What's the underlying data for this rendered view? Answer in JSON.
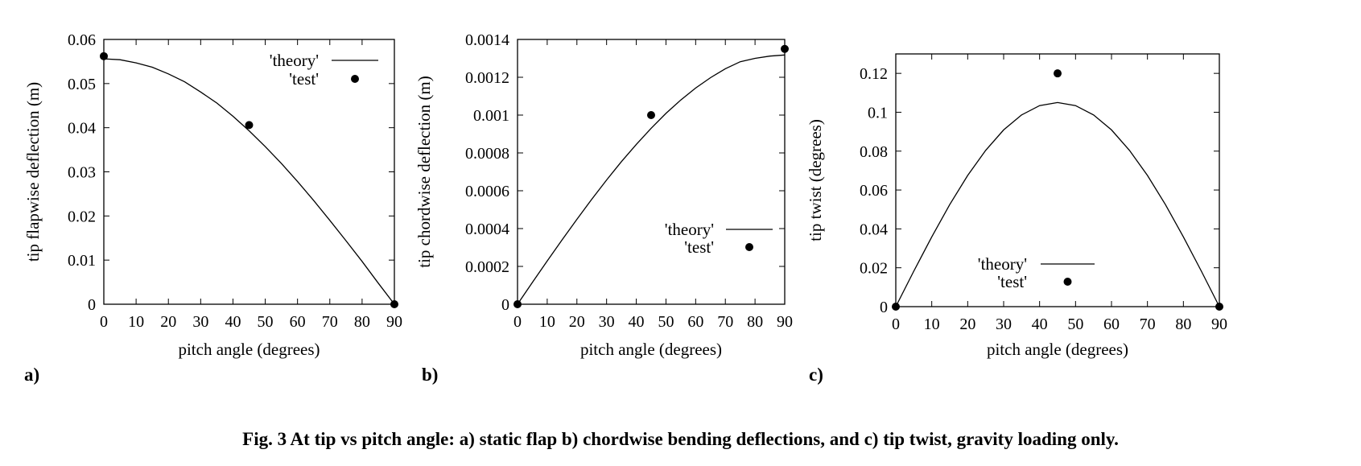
{
  "caption": "Fig. 3    At tip vs pitch angle: a) static flap b) chordwise bending deflections, and c) tip twist, gravity loading only.",
  "chart_data": [
    {
      "type": "line",
      "panel_label": "a)",
      "xlabel": "pitch angle (degrees)",
      "ylabel": "tip flapwise deflection (m)",
      "xlim": [
        0,
        90
      ],
      "ylim": [
        0,
        0.06
      ],
      "xticks": [
        0,
        10,
        20,
        30,
        40,
        50,
        60,
        70,
        80,
        90
      ],
      "xtick_labels": [
        "0",
        "10",
        "20",
        "30",
        "40",
        "50",
        "60",
        "70",
        "80",
        "90"
      ],
      "yticks": [
        0,
        0.01,
        0.02,
        0.03,
        0.04,
        0.05,
        0.06
      ],
      "ytick_labels": [
        "0",
        "0.01",
        "0.02",
        "0.03",
        "0.04",
        "0.05",
        "0.06"
      ],
      "legend_position": "top-right",
      "series": [
        {
          "name": "'theory'",
          "kind": "line",
          "x": [
            0,
            5,
            10,
            15,
            20,
            25,
            30,
            35,
            40,
            45,
            50,
            55,
            60,
            65,
            70,
            75,
            80,
            85,
            90
          ],
          "y": [
            0.0556,
            0.0554,
            0.0547,
            0.0537,
            0.0522,
            0.0504,
            0.0481,
            0.0456,
            0.0426,
            0.0393,
            0.0357,
            0.0319,
            0.0278,
            0.0235,
            0.019,
            0.0144,
            0.0097,
            0.0048,
            0.0
          ]
        },
        {
          "name": "'test'",
          "kind": "scatter",
          "x": [
            0,
            45,
            90
          ],
          "y": [
            0.0562,
            0.0406,
            0.0
          ]
        }
      ]
    },
    {
      "type": "line",
      "panel_label": "b)",
      "xlabel": "pitch angle (degrees)",
      "ylabel": "tip chordwise deflection (m)",
      "xlim": [
        0,
        90
      ],
      "ylim": [
        0,
        0.0014
      ],
      "xticks": [
        0,
        10,
        20,
        30,
        40,
        50,
        60,
        70,
        80,
        90
      ],
      "xtick_labels": [
        "0",
        "10",
        "20",
        "30",
        "40",
        "50",
        "60",
        "70",
        "80",
        "90"
      ],
      "yticks": [
        0,
        0.0002,
        0.0004,
        0.0006,
        0.0008,
        0.001,
        0.0012,
        0.0014
      ],
      "ytick_labels": [
        "0",
        "0.0002",
        "0.0004",
        "0.0006",
        "0.0008",
        "0.001",
        "0.0012",
        "0.0014"
      ],
      "legend_position": "bottom-right",
      "series": [
        {
          "name": "'theory'",
          "kind": "line",
          "x": [
            0,
            5,
            10,
            15,
            20,
            25,
            30,
            35,
            40,
            45,
            50,
            55,
            60,
            65,
            70,
            75,
            80,
            85,
            90
          ],
          "y": [
            0.0,
            0.000115,
            0.000229,
            0.00034,
            0.000449,
            0.000555,
            0.000657,
            0.000754,
            0.000845,
            0.00093,
            0.001009,
            0.00108,
            0.001143,
            0.001198,
            0.001245,
            0.001282,
            0.0013,
            0.001312,
            0.001318
          ]
        },
        {
          "name": "'test'",
          "kind": "scatter",
          "x": [
            0,
            45,
            90
          ],
          "y": [
            0.0,
            0.001,
            0.00135
          ]
        }
      ]
    },
    {
      "type": "line",
      "panel_label": "c)",
      "xlabel": "pitch angle (degrees)",
      "ylabel": "tip twist (degrees)",
      "xlim": [
        0,
        90
      ],
      "ylim": [
        0,
        0.13
      ],
      "xticks": [
        0,
        10,
        20,
        30,
        40,
        50,
        60,
        70,
        80,
        90
      ],
      "xtick_labels": [
        "0",
        "10",
        "20",
        "30",
        "40",
        "50",
        "60",
        "70",
        "80",
        "90"
      ],
      "yticks": [
        0,
        0.02,
        0.04,
        0.06,
        0.08,
        0.1,
        0.12
      ],
      "ytick_labels": [
        "0",
        "0.02",
        "0.04",
        "0.06",
        "0.08",
        "0.1",
        "0.12"
      ],
      "legend_position": "bottom-center",
      "series": [
        {
          "name": "'theory'",
          "kind": "line",
          "x": [
            0,
            5,
            10,
            15,
            20,
            25,
            30,
            35,
            40,
            45,
            50,
            55,
            60,
            65,
            70,
            75,
            80,
            85,
            90
          ],
          "y": [
            0.0,
            0.0182,
            0.0359,
            0.0525,
            0.0675,
            0.0804,
            0.0909,
            0.0986,
            0.1034,
            0.105,
            0.1034,
            0.0986,
            0.0909,
            0.0804,
            0.0675,
            0.0525,
            0.0359,
            0.0182,
            0.0
          ]
        },
        {
          "name": "'test'",
          "kind": "scatter",
          "x": [
            0,
            45,
            90
          ],
          "y": [
            0.0,
            0.12,
            0.0
          ]
        }
      ]
    }
  ]
}
